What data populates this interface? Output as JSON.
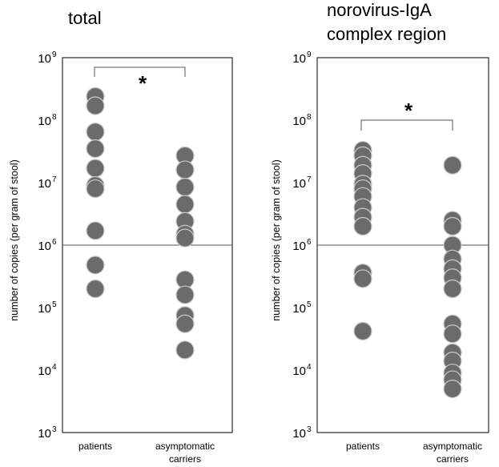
{
  "chart_data": [
    {
      "type": "scatter",
      "title": "total",
      "title_lines": [
        "total"
      ],
      "ylabel": "number of copies (per gram of stool)",
      "yscale": "log",
      "ylim": [
        1000,
        1000000000
      ],
      "y_ticks": [
        {
          "base": "10",
          "exp": "3"
        },
        {
          "base": "10",
          "exp": "4"
        },
        {
          "base": "10",
          "exp": "5"
        },
        {
          "base": "10",
          "exp": "6"
        },
        {
          "base": "10",
          "exp": "7"
        },
        {
          "base": "10",
          "exp": "8"
        },
        {
          "base": "10",
          "exp": "9"
        }
      ],
      "reference_line": 1000000,
      "categories": [
        [
          "patients"
        ],
        [
          "asymptomatic",
          "carriers"
        ]
      ],
      "significance": "*",
      "series": [
        {
          "values": [
            240000000,
            170000000,
            65000000,
            35000000,
            17000000,
            9000000,
            8000000,
            1700000,
            480000,
            200000
          ]
        },
        {
          "values": [
            27000000,
            16000000,
            8500000,
            4500000,
            2400000,
            1500000,
            1300000,
            280000,
            160000,
            75000,
            55000,
            21000
          ]
        }
      ]
    },
    {
      "type": "scatter",
      "title": "norovirus-IgA complex region",
      "title_lines": [
        "norovirus-IgA",
        "complex region"
      ],
      "ylabel": "number of copies (per gram of stool)",
      "yscale": "log",
      "ylim": [
        1000,
        1000000000
      ],
      "y_ticks": [
        {
          "base": "10",
          "exp": "3"
        },
        {
          "base": "10",
          "exp": "4"
        },
        {
          "base": "10",
          "exp": "5"
        },
        {
          "base": "10",
          "exp": "6"
        },
        {
          "base": "10",
          "exp": "7"
        },
        {
          "base": "10",
          "exp": "8"
        },
        {
          "base": "10",
          "exp": "9"
        }
      ],
      "reference_line": 1000000,
      "categories": [
        [
          "patients"
        ],
        [
          "asymptomatic",
          "carriers"
        ]
      ],
      "significance": "*",
      "series": [
        {
          "values": [
            33000000,
            27000000,
            19000000,
            14000000,
            9500000,
            8000000,
            6000000,
            4000000,
            2800000,
            2000000,
            360000,
            290000,
            42000
          ]
        },
        {
          "values": [
            19000000,
            2500000,
            2000000,
            1000000,
            600000,
            420000,
            300000,
            200000,
            55000,
            38000,
            19000,
            14000,
            9000,
            7000,
            5000
          ]
        }
      ]
    }
  ]
}
